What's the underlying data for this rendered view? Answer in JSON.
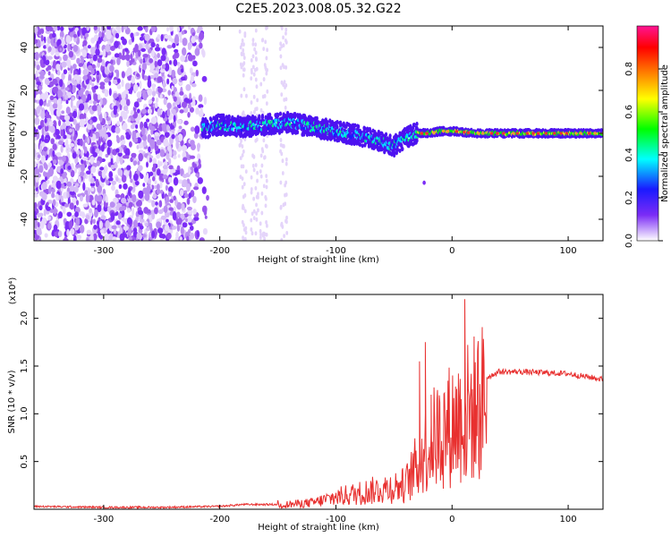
{
  "page": {
    "title": "C2E5.2023.008.05.32.G22"
  },
  "chart_data": [
    {
      "type": "heatmap",
      "xlabel": "Height of straight line (km)",
      "ylabel": "Frequency (Hz)",
      "xlim": [
        -360,
        130
      ],
      "ylim": [
        -50,
        50
      ],
      "xticks": [
        -300,
        -200,
        -100,
        0,
        100
      ],
      "yticks": [
        -40,
        -20,
        0,
        20,
        40
      ],
      "colorbar": {
        "label": "Normalized spectral amplitude",
        "range": [
          0.0,
          1.0
        ],
        "ticks": [
          0.0,
          0.2,
          0.4,
          0.6,
          0.8
        ],
        "colormap": [
          "#ffffff",
          "#7b2cf6",
          "#1a1aff",
          "#00ffff",
          "#00ff00",
          "#ffff00",
          "#ff8000",
          "#ff0000",
          "#ff1493"
        ]
      },
      "ridge": {
        "x": [
          -215,
          -200,
          -180,
          -160,
          -140,
          -120,
          -100,
          -80,
          -60,
          -50,
          -40,
          -30,
          -20,
          -10,
          0,
          20,
          60,
          100,
          130
        ],
        "y": [
          2,
          4,
          3,
          4,
          5,
          3,
          1,
          -1,
          -4,
          -6,
          -2,
          0,
          0,
          1,
          1,
          0,
          0,
          0,
          0
        ]
      }
    },
    {
      "type": "line",
      "xlabel": "Height of straight line (km)",
      "ylabel": "SNR (10 * v/v)",
      "y_multiplier": "(x10⁴)",
      "xlim": [
        -360,
        130
      ],
      "ylim": [
        0,
        2.25
      ],
      "xticks": [
        -300,
        -200,
        -100,
        0,
        100
      ],
      "yticks": [
        0.5,
        1.0,
        1.5,
        2.0
      ],
      "color": "#e8302f",
      "series": [
        {
          "x": [
            -360,
            -300,
            -250,
            -200,
            -180,
            -150,
            -120,
            -100,
            -80,
            -60,
            -40,
            -30,
            -20,
            -10,
            0,
            10,
            20,
            30,
            40,
            60,
            80,
            100,
            120,
            130
          ],
          "y": [
            0.03,
            0.02,
            0.02,
            0.03,
            0.05,
            0.05,
            0.08,
            0.15,
            0.2,
            0.25,
            0.3,
            0.55,
            0.8,
            0.95,
            1.05,
            1.15,
            1.25,
            1.38,
            1.44,
            1.44,
            1.43,
            1.42,
            1.38,
            1.36
          ]
        }
      ],
      "spikes": [
        {
          "x": -28,
          "y": 1.55
        },
        {
          "x": -23,
          "y": 1.75
        },
        {
          "x": -18,
          "y": 1.2
        },
        {
          "x": 11,
          "y": 2.2
        },
        {
          "x": 12,
          "y": 0.35
        }
      ]
    }
  ]
}
